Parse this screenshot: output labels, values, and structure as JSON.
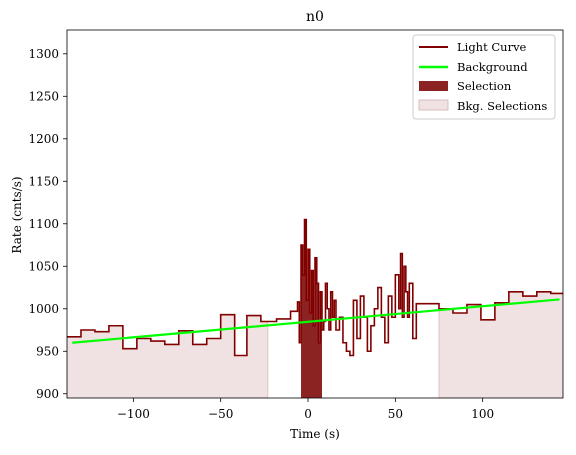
{
  "chart_data": {
    "type": "line",
    "title": "n0",
    "xlabel": "Time (s)",
    "ylabel": "Rate (cnts/s)",
    "xlim": [
      -138,
      146
    ],
    "ylim": [
      895,
      1328
    ],
    "xticks": [
      -100,
      -50,
      0,
      50,
      100
    ],
    "xtick_labels": [
      "−100",
      "−50",
      "0",
      "50",
      "100"
    ],
    "yticks": [
      900,
      950,
      1000,
      1050,
      1100,
      1150,
      1200,
      1250,
      1300
    ],
    "ytick_labels": [
      "900",
      "950",
      "1000",
      "1050",
      "1100",
      "1150",
      "1200",
      "1250",
      "1300"
    ],
    "legend_position": "top-right",
    "grid": false,
    "colors": {
      "light_curve": "#800000",
      "background": "#00ff00",
      "selection": "#8b2323",
      "bkg_selection": "#f0e2e2",
      "bkg_selection_edge": "#d9bcbc"
    },
    "series": [
      {
        "name": "Light Curve",
        "style": "step-post",
        "x": [
          -138,
          -130,
          -122,
          -114,
          -106,
          -98,
          -90,
          -82,
          -74,
          -66,
          -58,
          -50,
          -42,
          -35,
          -27,
          -18,
          -10,
          -6,
          -5,
          -4,
          -3,
          -2,
          -1,
          0,
          1,
          2,
          3,
          4,
          5,
          6,
          7,
          8,
          9,
          10,
          11,
          12,
          13,
          14,
          15,
          16,
          18,
          20,
          22,
          24,
          26,
          28,
          30,
          32,
          34,
          36,
          38,
          40,
          42,
          44,
          46,
          48,
          50,
          52,
          53,
          54,
          55,
          56,
          57,
          58,
          60,
          62,
          75,
          83,
          91,
          99,
          107,
          115,
          123,
          131,
          139
        ],
        "y": [
          967,
          975,
          973,
          980,
          953,
          965,
          962,
          958,
          974,
          958,
          965,
          993,
          945,
          992,
          985,
          988,
          997,
          1008,
          960,
          1075,
          1040,
          1105,
          1010,
          1070,
          995,
          1045,
          980,
          1060,
          1030,
          960,
          1020,
          975,
          985,
          1030,
          1000,
          975,
          1020,
          990,
          1010,
          975,
          990,
          960,
          950,
          945,
          1010,
          965,
          1015,
          990,
          950,
          980,
          1000,
          1025,
          990,
          960,
          1015,
          990,
          1040,
          1000,
          1065,
          990,
          1050,
          1020,
          990,
          1030,
          965,
          1006,
          1000,
          995,
          1005,
          987,
          1007,
          1020,
          1015,
          1020,
          1018
        ]
      },
      {
        "name": "Background",
        "style": "line",
        "x": [
          -135,
          144
        ],
        "y": [
          960,
          1011
        ]
      }
    ],
    "selection": {
      "name": "Selection",
      "x_range": [
        -4,
        8
      ]
    },
    "bkg_selections": {
      "name": "Bkg. Selections",
      "ranges": [
        [
          -138,
          -23
        ],
        [
          75,
          146
        ]
      ]
    }
  }
}
